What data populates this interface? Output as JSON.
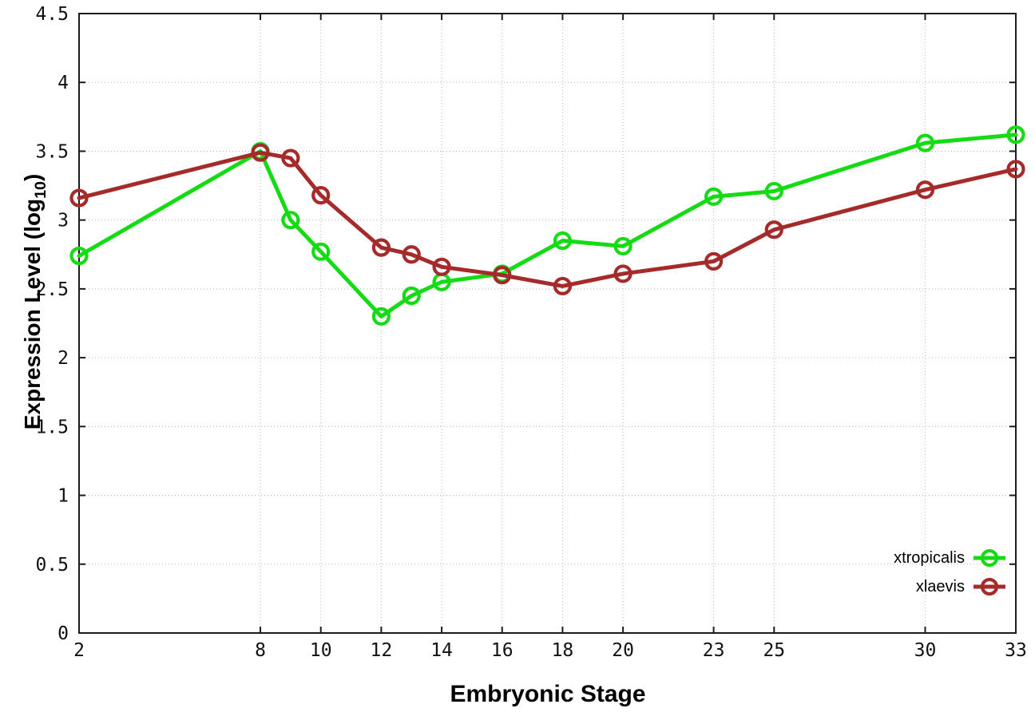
{
  "chart_data": {
    "type": "line",
    "title": "",
    "xlabel": "Embryonic Stage",
    "ylabel": {
      "prefix": "Expression Level (log",
      "sub": "10",
      "suffix": ")"
    },
    "x": [
      2,
      8,
      9,
      10,
      12,
      13,
      14,
      16,
      18,
      20,
      23,
      25,
      30,
      33
    ],
    "series": [
      {
        "name": "xtropicalis",
        "color": "#15db15",
        "values": [
          2.74,
          3.5,
          3.0,
          2.77,
          2.3,
          2.45,
          2.55,
          2.61,
          2.85,
          2.81,
          3.17,
          3.21,
          3.56,
          3.62
        ]
      },
      {
        "name": "xlaevis",
        "color": "#a52a2a",
        "values": [
          3.16,
          3.49,
          3.45,
          3.18,
          2.8,
          2.75,
          2.66,
          2.6,
          2.52,
          2.61,
          2.7,
          2.93,
          3.22,
          3.37
        ]
      }
    ],
    "xlim": [
      2,
      33
    ],
    "ylim": [
      0,
      4.5
    ],
    "x_ticks": [
      2,
      8,
      10,
      12,
      14,
      16,
      18,
      20,
      23,
      25,
      30,
      33
    ],
    "y_ticks": [
      0,
      0.5,
      1,
      1.5,
      2,
      2.5,
      3,
      3.5,
      4,
      4.5
    ],
    "y_tick_labels": [
      "0",
      "0.5",
      "1",
      "1.5",
      "2",
      "2.5",
      "3",
      "3.5",
      "4",
      "4.5"
    ],
    "grid": true,
    "legend_position": "bottom-right",
    "axis_color": "#1c1c1c",
    "grid_color": "#b5b5b5",
    "tick_label_color": "#111111"
  }
}
